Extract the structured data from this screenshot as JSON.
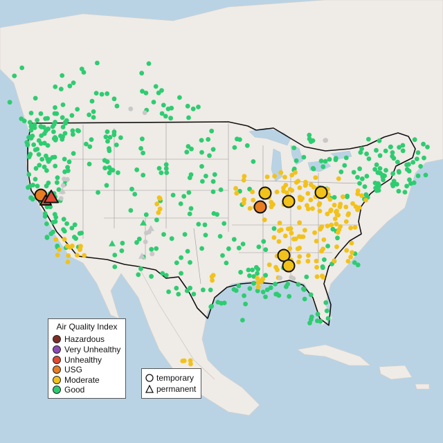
{
  "legend": {
    "title": "Air Quality Index",
    "categories": [
      {
        "label": "Hazardous",
        "color": "#7e2e26"
      },
      {
        "label": "Very Unhealthy",
        "color": "#8c4bb3"
      },
      {
        "label": "Unhealthy",
        "color": "#e24a33"
      },
      {
        "label": "USG",
        "color": "#e87d22"
      },
      {
        "label": "Moderate",
        "color": "#f2c21b"
      },
      {
        "label": "Good",
        "color": "#2ecc71"
      }
    ]
  },
  "shape_legend": {
    "items": [
      {
        "label": "temporary",
        "shape": "circle-icon"
      },
      {
        "label": "permanent",
        "shape": "triangle-icon"
      }
    ]
  },
  "colors": {
    "water": "#b9d3e4",
    "land": "#efebe6",
    "border": "#111111",
    "state_lines": "#9a9a9a",
    "inactive": "#c8c8c8"
  }
}
